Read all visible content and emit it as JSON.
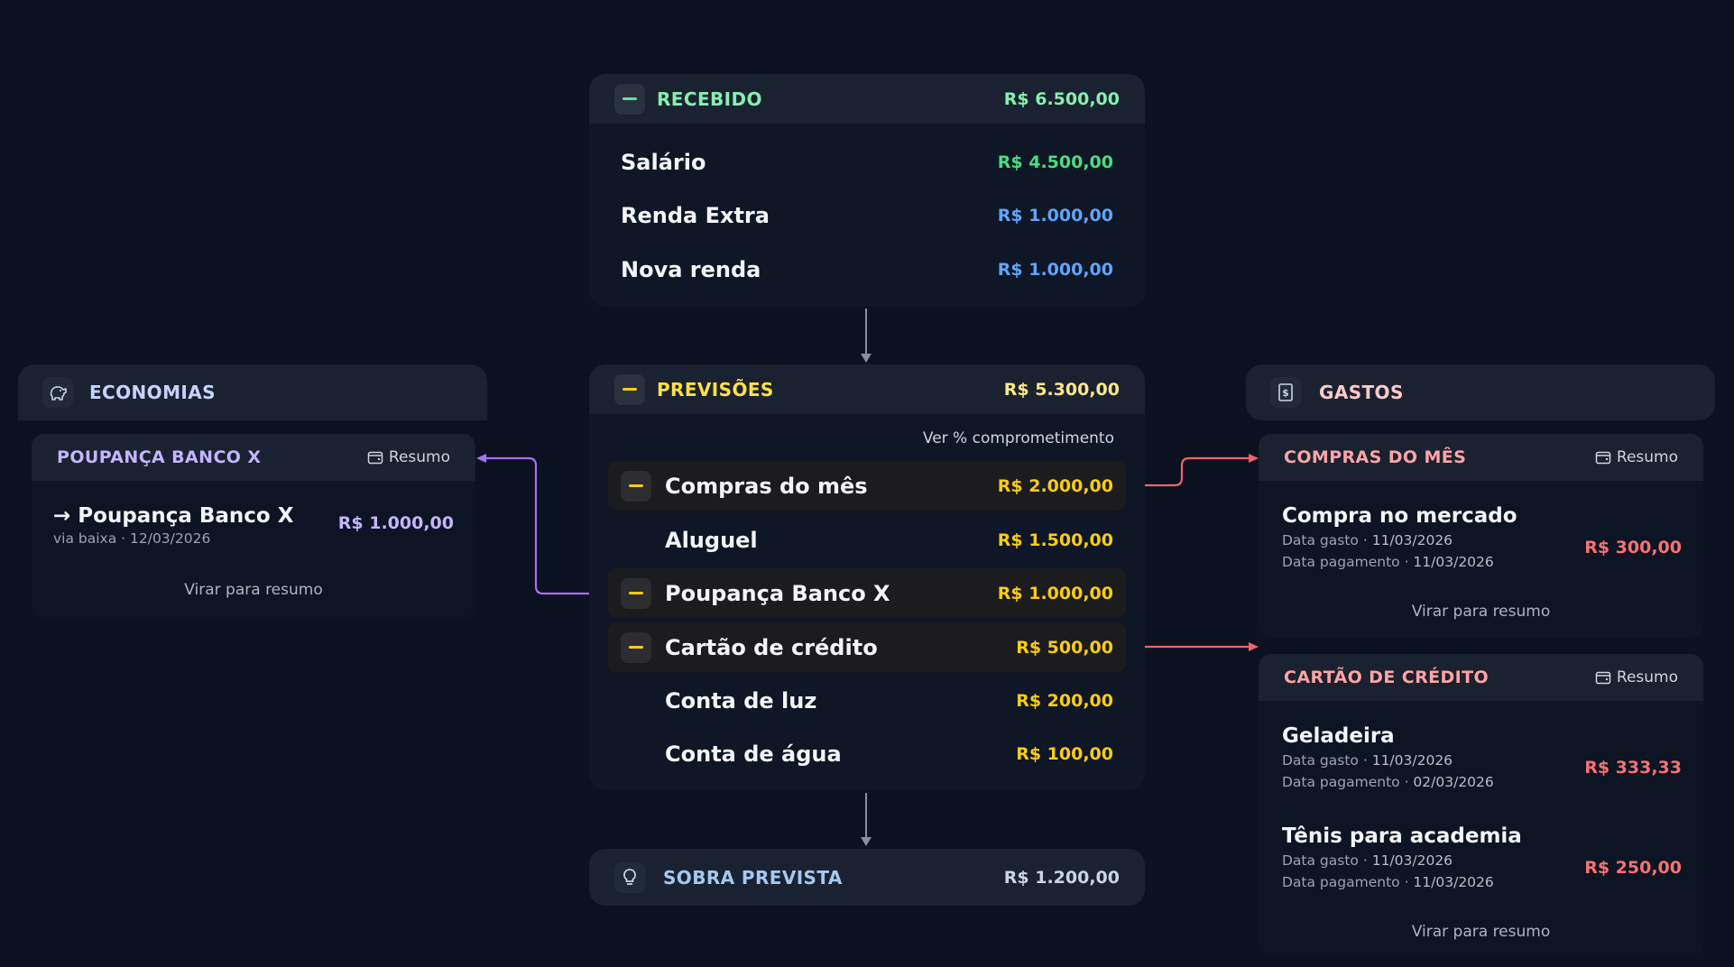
{
  "colors": {
    "green": "#4ade80",
    "blue": "#60a5fa",
    "yellow": "#facc15",
    "purple": "#c4b5fd",
    "red": "#f87171",
    "connector_purple": "#a970f0",
    "connector_red": "#f0636a"
  },
  "recebido": {
    "title": "RECEBIDO",
    "total": "R$ 6.500,00",
    "icon": "minus-icon",
    "items": [
      {
        "label": "Salário",
        "value": "R$ 4.500,00"
      },
      {
        "label": "Renda Extra",
        "value": "R$ 1.000,00"
      },
      {
        "label": "Nova renda",
        "value": "R$ 1.000,00"
      }
    ]
  },
  "previsoes": {
    "title": "PREVISÕES",
    "total": "R$ 5.300,00",
    "link": "Ver % comprometimento",
    "items": [
      {
        "label": "Compras do mês",
        "value": "R$ 2.000,00",
        "expandable": true
      },
      {
        "label": "Aluguel",
        "value": "R$ 1.500,00",
        "expandable": false
      },
      {
        "label": "Poupança Banco X",
        "value": "R$ 1.000,00",
        "expandable": true
      },
      {
        "label": "Cartão de crédito",
        "value": "R$ 500,00",
        "expandable": true
      },
      {
        "label": "Conta de luz",
        "value": "R$ 200,00",
        "expandable": false
      },
      {
        "label": "Conta de água",
        "value": "R$ 100,00",
        "expandable": false
      }
    ]
  },
  "sobra": {
    "title": "SOBRA PREVISTA",
    "total": "R$ 1.200,00",
    "icon": "lightbulb-icon"
  },
  "economias": {
    "title": "ECONOMIAS",
    "icon": "piggy-bank-icon",
    "card": {
      "title": "POUPANÇA BANCO X",
      "resumo": "Resumo",
      "item": {
        "arrow": "→",
        "name": "Poupança Banco X",
        "meta": "via baixa · 12/03/2026",
        "value": "R$ 1.000,00"
      },
      "flip": "Virar para resumo"
    }
  },
  "gastos": {
    "title": "GASTOS",
    "icon": "receipt-icon",
    "cards": [
      {
        "title": "COMPRAS DO MÊS",
        "resumo": "Resumo",
        "items": [
          {
            "name": "Compra no mercado",
            "gasto_label": "Data gasto",
            "gasto": "11/03/2026",
            "pag_label": "Data pagamento",
            "pagamento": "11/03/2026",
            "value": "R$ 300,00"
          }
        ],
        "flip": "Virar para resumo"
      },
      {
        "title": "CARTÃO DE CRÉDITO",
        "resumo": "Resumo",
        "items": [
          {
            "name": "Geladeira",
            "gasto_label": "Data gasto",
            "gasto": "11/03/2026",
            "pag_label": "Data pagamento",
            "pagamento": "02/03/2026",
            "value": "R$ 333,33"
          },
          {
            "name": "Tênis para academia",
            "gasto_label": "Data gasto",
            "gasto": "11/03/2026",
            "pag_label": "Data pagamento",
            "pagamento": "11/03/2026",
            "value": "R$ 250,00"
          }
        ],
        "flip": "Virar para resumo"
      }
    ]
  }
}
